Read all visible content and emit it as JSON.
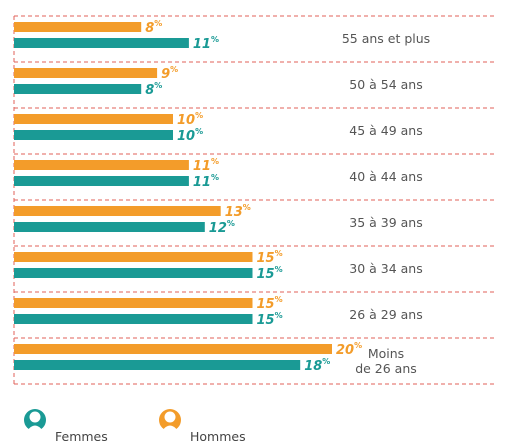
{
  "chart_data": {
    "type": "bar",
    "orientation": "horizontal",
    "categories": [
      "55 ans et plus",
      "50 à 54 ans",
      "45 à 49 ans",
      "40 à 44 ans",
      "35 à 39 ans",
      "30 à 34 ans",
      "26 à 29 ans",
      "Moins\nde 26 ans"
    ],
    "series": [
      {
        "name": "Hommes",
        "color": "#f39c2a",
        "values": [
          8,
          9,
          10,
          11,
          13,
          15,
          15,
          20
        ],
        "value_labels": [
          "8%",
          "9%",
          "10%",
          "11%",
          "13%",
          "15%",
          "15%",
          "20%"
        ]
      },
      {
        "name": "Femmes",
        "color": "#1a9a95",
        "values": [
          11,
          8,
          10,
          11,
          12,
          15,
          15,
          18
        ],
        "value_labels": [
          "11%",
          "8%",
          "10%",
          "11%",
          "12%",
          "15%",
          "15%",
          "18%"
        ]
      }
    ]
  }
}
